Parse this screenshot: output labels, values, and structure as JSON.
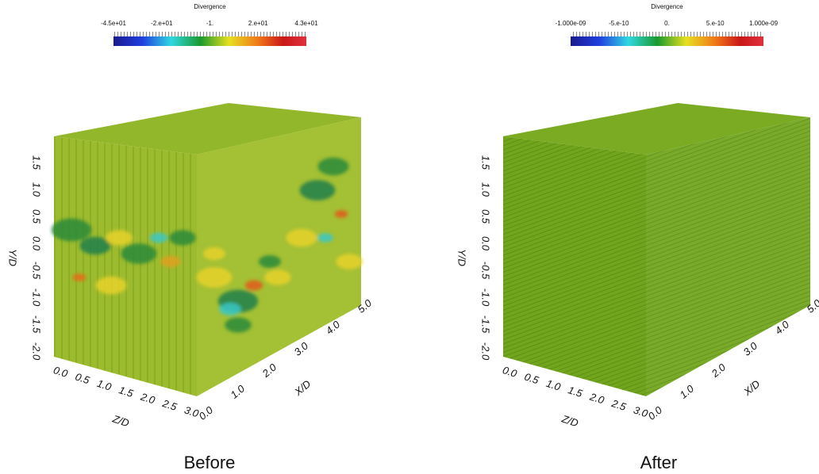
{
  "panels": [
    {
      "colorbar": {
        "title": "Divergence",
        "ticks": [
          "-4.5e+01",
          "-2.e+01",
          "-1.",
          "2.e+01",
          "4.3e+01"
        ]
      },
      "y_axis": {
        "label": "Y/D",
        "ticks": [
          "1.5",
          "1.0",
          "0.5",
          "0.0",
          "-0.5",
          "-1.0",
          "-1.5",
          "-2.0"
        ]
      },
      "z_axis": {
        "label": "Z/D",
        "ticks": [
          "0.0",
          "0.5",
          "1.0",
          "1.5",
          "2.0",
          "2.5",
          "3.0"
        ]
      },
      "x_axis": {
        "label": "X/D",
        "ticks": [
          "0.0",
          "1.0",
          "2.0",
          "3.0",
          "4.0",
          "5.0"
        ]
      },
      "caption": "Before"
    },
    {
      "colorbar": {
        "title": "Divergence",
        "ticks": [
          "-1.000e-09",
          "-5.e-10",
          "0.",
          "5.e-10",
          "1.000e-09"
        ]
      },
      "y_axis": {
        "label": "Y/D",
        "ticks": [
          "1.5",
          "1.0",
          "0.5",
          "0.0",
          "-0.5",
          "-1.0",
          "-1.5",
          "-2.0"
        ]
      },
      "z_axis": {
        "label": "Z/D",
        "ticks": [
          "0.0",
          "0.5",
          "1.0",
          "1.5",
          "2.0",
          "2.5",
          "3.0"
        ]
      },
      "x_axis": {
        "label": "X/D",
        "ticks": [
          "0.0",
          "1.0",
          "2.0",
          "3.0",
          "4.0",
          "5.0"
        ]
      },
      "caption": "After"
    }
  ]
}
